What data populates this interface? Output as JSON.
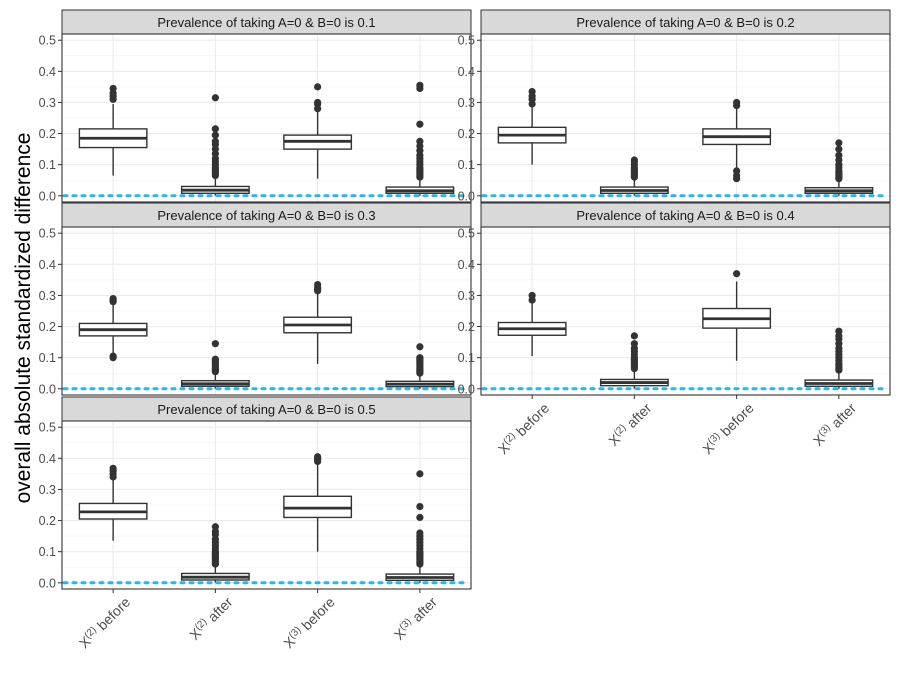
{
  "chart_data": {
    "type": "boxplot",
    "ylabel": "overall absolute standardized difference",
    "xlabel": "",
    "ylim": [
      -0.02,
      0.52
    ],
    "yticks": [
      "0.0",
      "0.1",
      "0.2",
      "0.3",
      "0.4",
      "0.5"
    ],
    "ytick_values": [
      0.0,
      0.1,
      0.2,
      0.3,
      0.4,
      0.5
    ],
    "categories": [
      {
        "base": "X",
        "sup": "(2)",
        "suffix": " before"
      },
      {
        "base": "X",
        "sup": "(2)",
        "suffix": " after"
      },
      {
        "base": "X",
        "sup": "(3)",
        "suffix": " before"
      },
      {
        "base": "X",
        "sup": "(3)",
        "suffix": " after"
      }
    ],
    "reference_line": {
      "y": 0.0,
      "color": "#29b6e8",
      "style": "dotted"
    },
    "colors": {
      "panel_strip": "#d9d9d9",
      "grid": "#ebebeb",
      "box": "#333333"
    },
    "facets": [
      {
        "title": "Prevalence of taking A=0 & B=0 is 0.1",
        "boxes": [
          {
            "min": 0.065,
            "q1": 0.155,
            "median": 0.185,
            "q3": 0.215,
            "max": 0.295,
            "outliers": [
              0.31,
              0.32,
              0.33,
              0.345
            ]
          },
          {
            "min": 0.0,
            "q1": 0.008,
            "median": 0.018,
            "q3": 0.03,
            "max": 0.06,
            "outliers": [
              0.065,
              0.07,
              0.075,
              0.08,
              0.085,
              0.09,
              0.1,
              0.11,
              0.12,
              0.135,
              0.15,
              0.165,
              0.175,
              0.195,
              0.215,
              0.315
            ]
          },
          {
            "min": 0.055,
            "q1": 0.15,
            "median": 0.175,
            "q3": 0.195,
            "max": 0.27,
            "outliers": [
              0.28,
              0.295,
              0.3,
              0.35
            ]
          },
          {
            "min": 0.0,
            "q1": 0.008,
            "median": 0.016,
            "q3": 0.028,
            "max": 0.055,
            "outliers": [
              0.06,
              0.065,
              0.07,
              0.075,
              0.08,
              0.085,
              0.09,
              0.1,
              0.11,
              0.12,
              0.13,
              0.145,
              0.16,
              0.175,
              0.23,
              0.345,
              0.355
            ]
          }
        ]
      },
      {
        "title": "Prevalence of taking A=0 & B=0 is 0.2",
        "boxes": [
          {
            "min": 0.1,
            "q1": 0.17,
            "median": 0.195,
            "q3": 0.22,
            "max": 0.285,
            "outliers": [
              0.295,
              0.31,
              0.32,
              0.335
            ]
          },
          {
            "min": 0.0,
            "q1": 0.008,
            "median": 0.017,
            "q3": 0.028,
            "max": 0.055,
            "outliers": [
              0.06,
              0.065,
              0.07,
              0.075,
              0.08,
              0.085,
              0.09,
              0.1,
              0.11,
              0.115
            ]
          },
          {
            "min": 0.085,
            "q1": 0.165,
            "median": 0.19,
            "q3": 0.215,
            "max": 0.285,
            "outliers": [
              0.055,
              0.065,
              0.08,
              0.29,
              0.3
            ]
          },
          {
            "min": 0.0,
            "q1": 0.008,
            "median": 0.016,
            "q3": 0.026,
            "max": 0.05,
            "outliers": [
              0.055,
              0.06,
              0.065,
              0.07,
              0.075,
              0.08,
              0.09,
              0.1,
              0.115,
              0.13,
              0.15,
              0.17
            ]
          }
        ]
      },
      {
        "title": "Prevalence of taking A=0 & B=0 is 0.3",
        "boxes": [
          {
            "min": 0.115,
            "q1": 0.17,
            "median": 0.19,
            "q3": 0.21,
            "max": 0.27,
            "outliers": [
              0.1,
              0.105,
              0.28,
              0.285,
              0.29
            ]
          },
          {
            "min": 0.0,
            "q1": 0.008,
            "median": 0.016,
            "q3": 0.026,
            "max": 0.05,
            "outliers": [
              0.055,
              0.06,
              0.065,
              0.07,
              0.075,
              0.08,
              0.085,
              0.09,
              0.095,
              0.145
            ]
          },
          {
            "min": 0.08,
            "q1": 0.18,
            "median": 0.205,
            "q3": 0.23,
            "max": 0.305,
            "outliers": [
              0.315,
              0.32,
              0.325,
              0.335
            ]
          },
          {
            "min": 0.0,
            "q1": 0.007,
            "median": 0.015,
            "q3": 0.024,
            "max": 0.045,
            "outliers": [
              0.05,
              0.055,
              0.06,
              0.065,
              0.07,
              0.075,
              0.08,
              0.085,
              0.09,
              0.095,
              0.1,
              0.135
            ]
          }
        ]
      },
      {
        "title": "Prevalence of taking A=0 & B=0 is 0.4",
        "boxes": [
          {
            "min": 0.105,
            "q1": 0.172,
            "median": 0.193,
            "q3": 0.213,
            "max": 0.275,
            "outliers": [
              0.285,
              0.3
            ]
          },
          {
            "min": 0.0,
            "q1": 0.01,
            "median": 0.02,
            "q3": 0.03,
            "max": 0.058,
            "outliers": [
              0.065,
              0.07,
              0.075,
              0.08,
              0.085,
              0.09,
              0.095,
              0.1,
              0.11,
              0.12,
              0.13,
              0.145,
              0.17
            ]
          },
          {
            "min": 0.09,
            "q1": 0.195,
            "median": 0.225,
            "q3": 0.258,
            "max": 0.345,
            "outliers": [
              0.37
            ]
          },
          {
            "min": 0.0,
            "q1": 0.008,
            "median": 0.017,
            "q3": 0.028,
            "max": 0.055,
            "outliers": [
              0.06,
              0.065,
              0.07,
              0.075,
              0.08,
              0.09,
              0.1,
              0.11,
              0.12,
              0.13,
              0.145,
              0.16,
              0.17,
              0.185
            ]
          }
        ]
      },
      {
        "title": "Prevalence of taking A=0 & B=0 is 0.5",
        "boxes": [
          {
            "min": 0.135,
            "q1": 0.205,
            "median": 0.228,
            "q3": 0.255,
            "max": 0.33,
            "outliers": [
              0.34,
              0.35,
              0.36,
              0.368
            ]
          },
          {
            "min": 0.0,
            "q1": 0.009,
            "median": 0.018,
            "q3": 0.03,
            "max": 0.055,
            "outliers": [
              0.06,
              0.065,
              0.07,
              0.075,
              0.08,
              0.085,
              0.09,
              0.095,
              0.1,
              0.11,
              0.12,
              0.13,
              0.14,
              0.155,
              0.165,
              0.18
            ]
          },
          {
            "min": 0.1,
            "q1": 0.21,
            "median": 0.24,
            "q3": 0.278,
            "max": 0.385,
            "outliers": [
              0.39,
              0.395,
              0.4,
              0.405
            ]
          },
          {
            "min": 0.0,
            "q1": 0.008,
            "median": 0.017,
            "q3": 0.028,
            "max": 0.055,
            "outliers": [
              0.06,
              0.065,
              0.07,
              0.075,
              0.08,
              0.085,
              0.09,
              0.095,
              0.1,
              0.11,
              0.12,
              0.13,
              0.14,
              0.15,
              0.16,
              0.21,
              0.245,
              0.35
            ]
          }
        ]
      }
    ]
  }
}
